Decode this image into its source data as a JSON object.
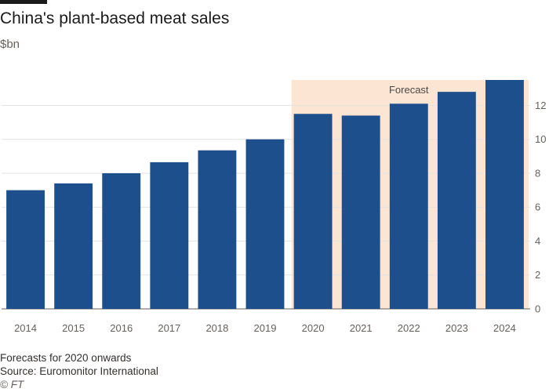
{
  "chart_data": {
    "type": "bar",
    "title": "China's plant-based meat sales",
    "subtitle": "$bn",
    "categories": [
      "2014",
      "2015",
      "2016",
      "2017",
      "2018",
      "2019",
      "2020",
      "2021",
      "2022",
      "2023",
      "2024"
    ],
    "values": [
      7.0,
      7.4,
      8.0,
      8.65,
      9.35,
      10.0,
      11.5,
      11.4,
      12.1,
      12.8,
      13.5
    ],
    "ylim": [
      0,
      13.5
    ],
    "yticks": [
      0,
      2,
      4,
      6,
      8,
      10,
      12
    ],
    "y_axis_side": "right",
    "grid": true,
    "bar_color": "#1d4f8c",
    "highlight": {
      "from": "2020",
      "to": "2024",
      "label": "Forecast",
      "color": "#fce5d3"
    }
  },
  "footer": {
    "note": "Forecasts for 2020 onwards",
    "source": "Source: Euromonitor International",
    "credit": "© FT"
  }
}
